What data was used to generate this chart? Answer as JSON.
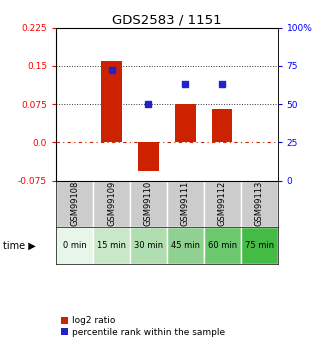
{
  "title": "GDS2583 / 1151",
  "samples": [
    "GSM99108",
    "GSM99109",
    "GSM99110",
    "GSM99111",
    "GSM99112",
    "GSM99113"
  ],
  "time_labels": [
    "0 min",
    "15 min",
    "30 min",
    "45 min",
    "60 min",
    "75 min"
  ],
  "time_colors": [
    "#e8f5e9",
    "#c8e8c8",
    "#b0deb0",
    "#90d090",
    "#6cc86c",
    "#44bb44"
  ],
  "log2_ratio": [
    0.0,
    0.16,
    -0.055,
    0.075,
    0.065,
    0.0
  ],
  "percentile_rank_pct": [
    null,
    72,
    50,
    63,
    63,
    null
  ],
  "left_yticks": [
    -0.075,
    0.0,
    0.075,
    0.15,
    0.225
  ],
  "right_yticks": [
    0,
    25,
    50,
    75,
    100
  ],
  "left_ylim": [
    -0.075,
    0.225
  ],
  "right_ylim": [
    0,
    100
  ],
  "hline_y": [
    0.075,
    0.15
  ],
  "bar_color": "#cc2200",
  "dot_color": "#2222cc",
  "bar_width": 0.55,
  "legend_labels": [
    "log2 ratio",
    "percentile rank within the sample"
  ],
  "bg_color_plot": "#ffffff",
  "zero_line_color": "#cc2200",
  "dotted_line_color": "#333333",
  "sample_bg": "#cccccc"
}
